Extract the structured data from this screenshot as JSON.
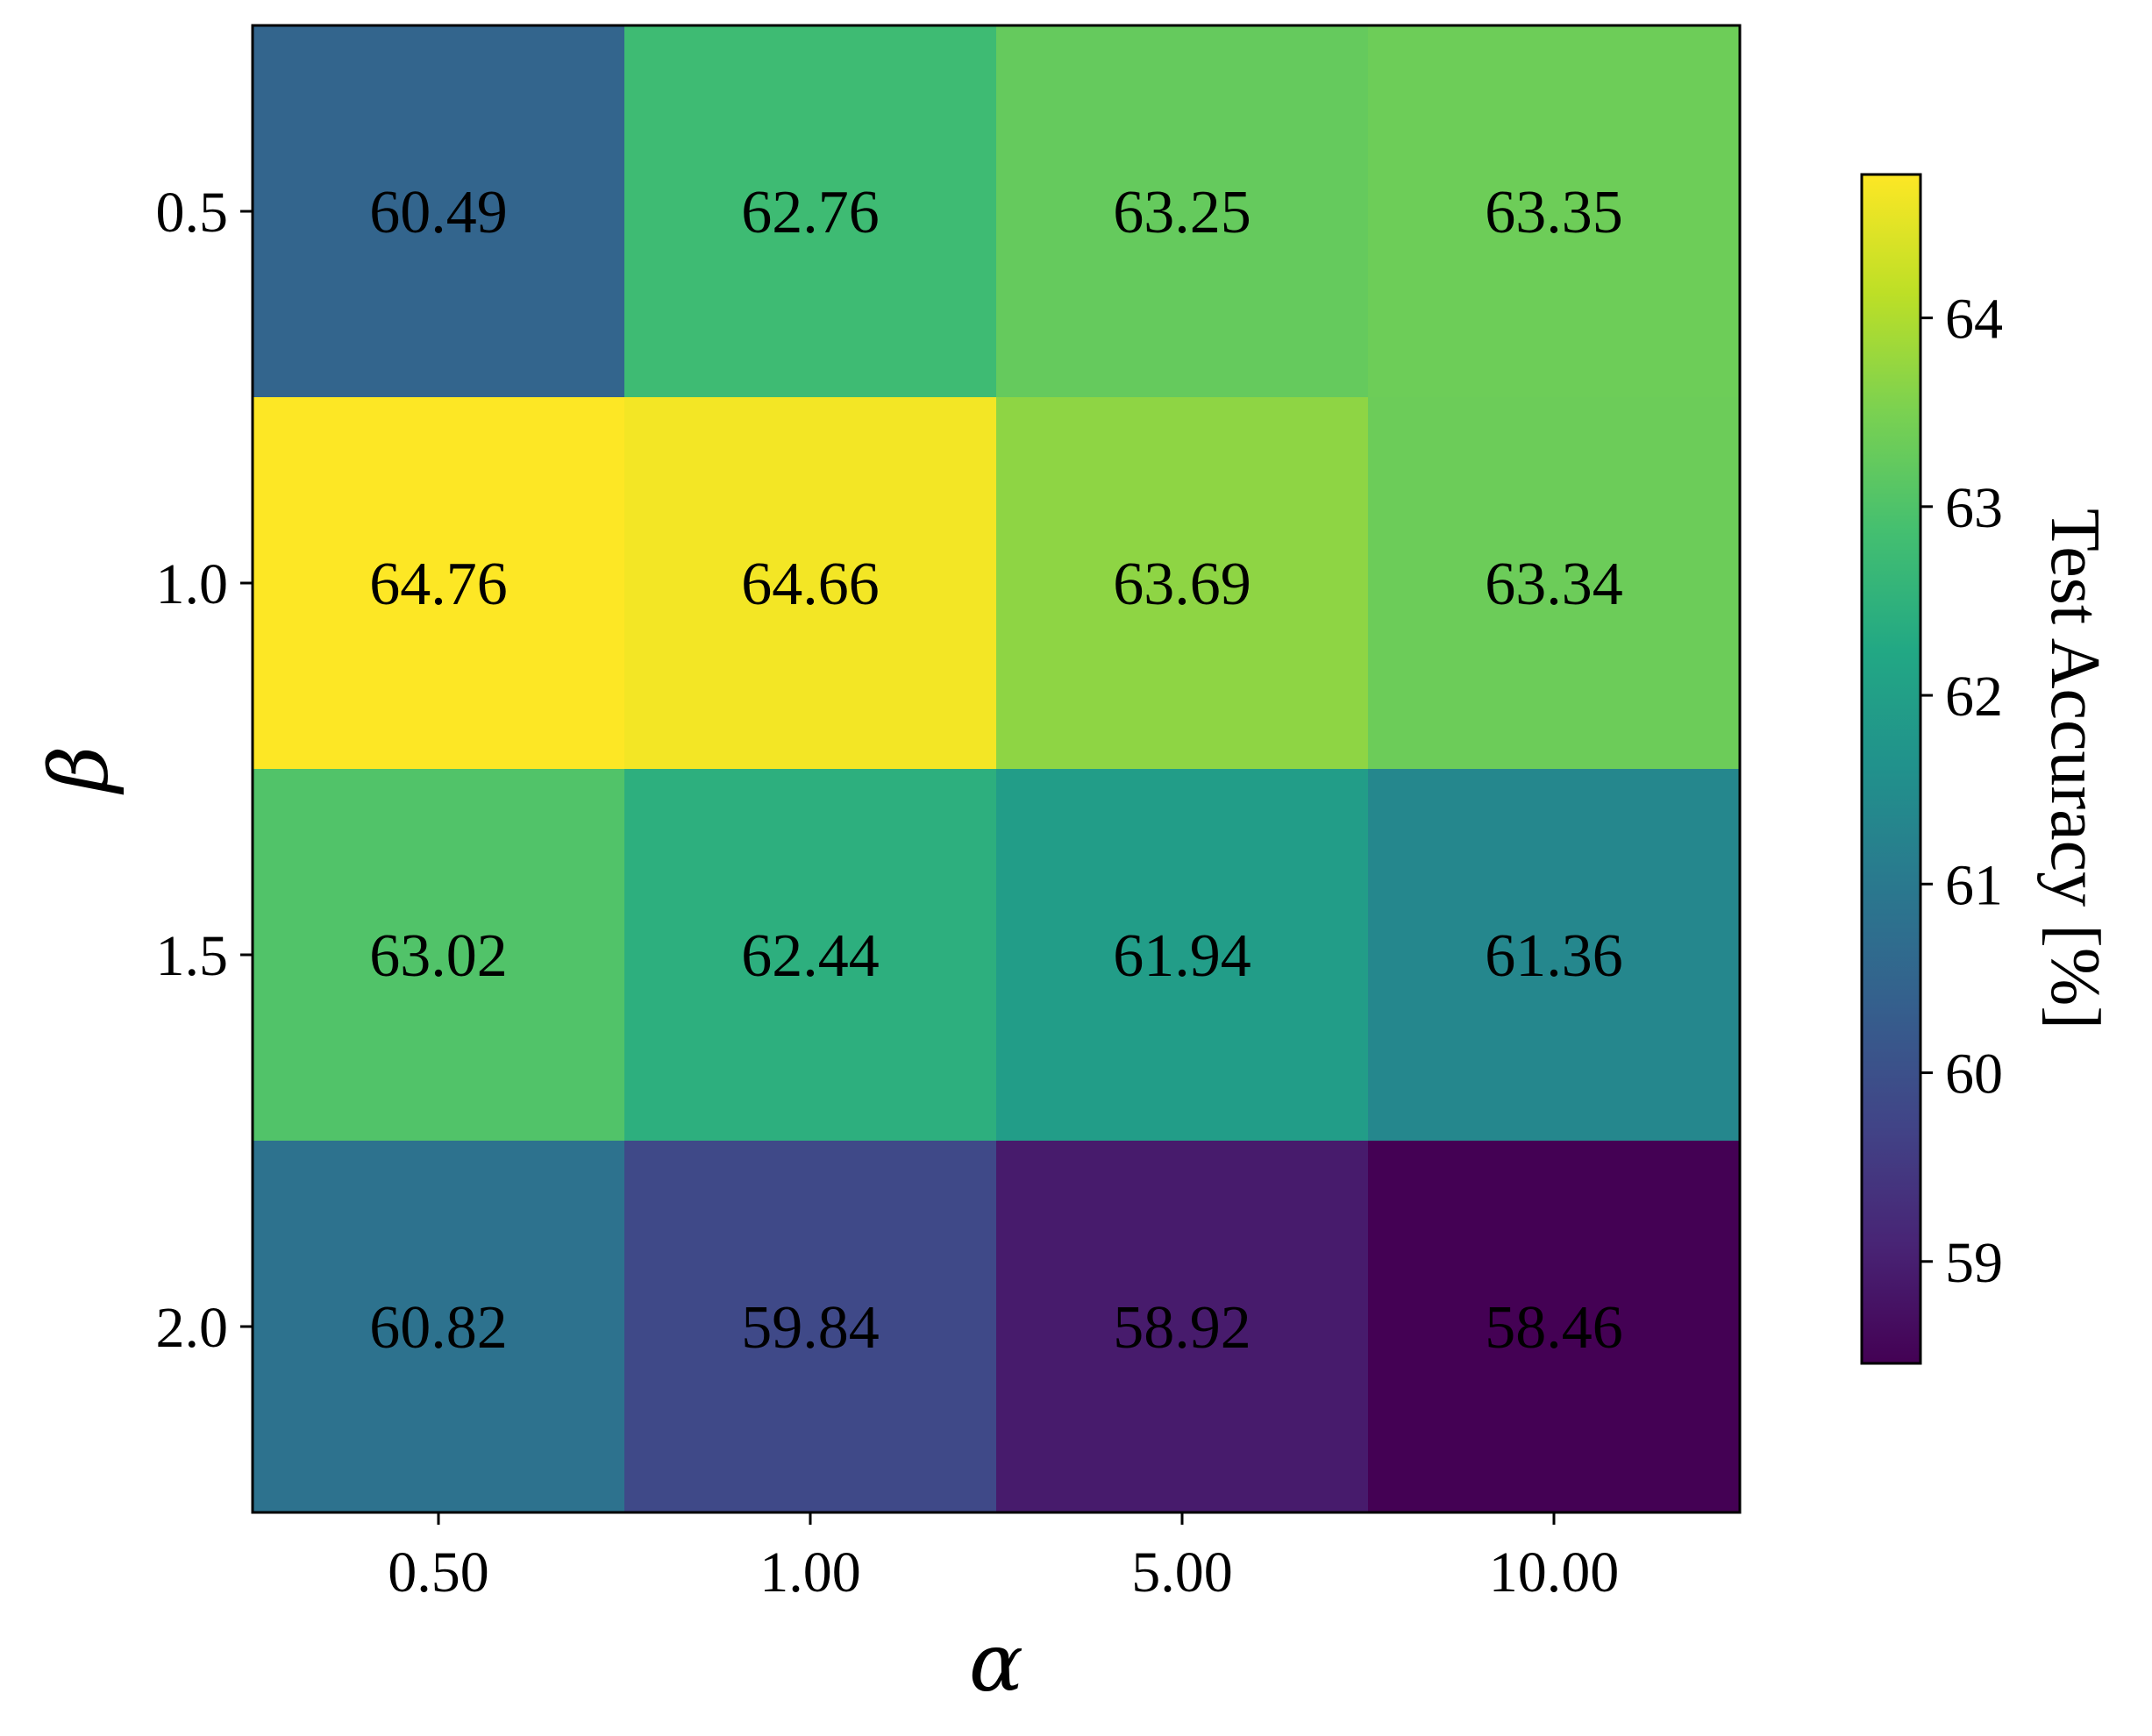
{
  "chart_data": {
    "type": "heatmap",
    "x_categories": [
      "0.50",
      "1.00",
      "5.00",
      "10.00"
    ],
    "y_categories": [
      "0.5",
      "1.0",
      "1.5",
      "2.0"
    ],
    "values": [
      [
        60.49,
        62.76,
        63.25,
        63.35
      ],
      [
        64.76,
        64.66,
        63.69,
        63.34
      ],
      [
        63.02,
        62.44,
        61.94,
        61.36
      ],
      [
        60.82,
        59.84,
        58.92,
        58.46
      ]
    ],
    "cell_labels": [
      [
        "60.49",
        "62.76",
        "63.25",
        "63.35"
      ],
      [
        "64.76",
        "64.66",
        "63.69",
        "63.34"
      ],
      [
        "63.02",
        "62.44",
        "61.94",
        "61.36"
      ],
      [
        "60.82",
        "59.84",
        "58.92",
        "58.46"
      ]
    ],
    "xlabel": "α",
    "ylabel": "β",
    "colormap": "viridis",
    "colorbar": {
      "label": "Test Accuracy [%]",
      "range": [
        58.46,
        64.76
      ],
      "ticks": [
        59,
        60,
        61,
        62,
        63,
        64
      ],
      "tick_labels": [
        "59",
        "60",
        "61",
        "62",
        "63",
        "64"
      ],
      "placement": "right"
    },
    "grid": false,
    "text_color": "#000000"
  }
}
